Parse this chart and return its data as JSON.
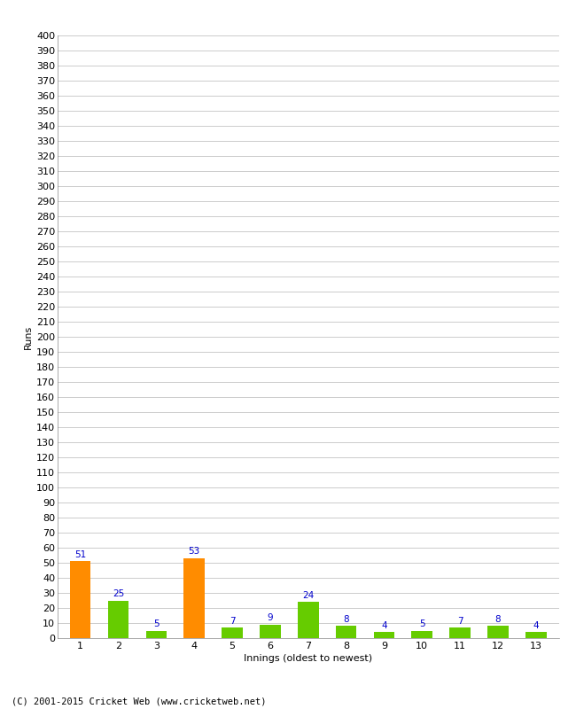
{
  "categories": [
    "1",
    "2",
    "3",
    "4",
    "5",
    "6",
    "7",
    "8",
    "9",
    "10",
    "11",
    "12",
    "13"
  ],
  "values": [
    51,
    25,
    5,
    53,
    7,
    9,
    24,
    8,
    4,
    5,
    7,
    8,
    4
  ],
  "bar_colors": [
    "#ff8c00",
    "#66cc00",
    "#66cc00",
    "#ff8c00",
    "#66cc00",
    "#66cc00",
    "#66cc00",
    "#66cc00",
    "#66cc00",
    "#66cc00",
    "#66cc00",
    "#66cc00",
    "#66cc00"
  ],
  "xlabel": "Innings (oldest to newest)",
  "ylabel": "Runs",
  "ylim": [
    0,
    400
  ],
  "yticks": [
    0,
    10,
    20,
    30,
    40,
    50,
    60,
    70,
    80,
    90,
    100,
    110,
    120,
    130,
    140,
    150,
    160,
    170,
    180,
    190,
    200,
    210,
    220,
    230,
    240,
    250,
    260,
    270,
    280,
    290,
    300,
    310,
    320,
    330,
    340,
    350,
    360,
    370,
    380,
    390,
    400
  ],
  "background_color": "#ffffff",
  "grid_color": "#cccccc",
  "label_color": "#0000cc",
  "label_fontsize": 7.5,
  "axis_fontsize": 8,
  "ylabel_fontsize": 8,
  "footer": "(C) 2001-2015 Cricket Web (www.cricketweb.net)",
  "footer_fontsize": 7.5
}
